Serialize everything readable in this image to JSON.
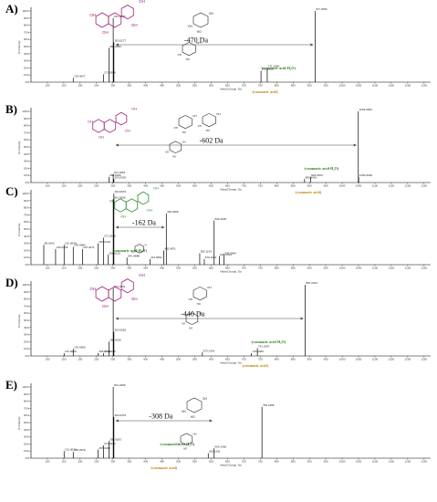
{
  "colors": {
    "peak": "#000000",
    "axis": "#000000",
    "arrow": "#444444",
    "coumaric": "#2e7d1f",
    "coumaric_acid": "#b8860b",
    "aglycone_purple": "#a0207a",
    "aglycone_green": "#2e8b2e",
    "sugar": "#222222"
  },
  "x_axis_title": "Mass/Charge, Da",
  "y_axis_title": "% Intensity",
  "x_ticks": [
    "100",
    "150",
    "200",
    "250",
    "300",
    "350",
    "400",
    "450",
    "500",
    "550",
    "600",
    "650",
    "700",
    "750",
    "800",
    "850",
    "900",
    "950",
    "1000",
    "1050",
    "1100",
    "1150",
    "1200",
    "1250"
  ],
  "y_ticks": [
    "0%",
    "10%",
    "20%",
    "30%",
    "40%",
    "50%",
    "60%",
    "70%",
    "80%",
    "90%",
    "100%"
  ],
  "chart_data": [
    {
      "type": "bar",
      "panel_label": "A)",
      "xlim": [
        50,
        1270
      ],
      "ylim": [
        0,
        100
      ],
      "peaks": [
        {
          "mz": 178.9,
          "intensity": 6,
          "label": "178.9977"
        },
        {
          "mz": 271.0,
          "intensity": 11,
          "label": "271.0588"
        },
        {
          "mz": 288.0,
          "intensity": 48,
          "label": "288.0185"
        },
        {
          "mz": 301.0,
          "intensity": 90,
          "label": "301.0350"
        },
        {
          "mz": 303.0,
          "intensity": 56,
          "label": "303.0277"
        },
        {
          "mz": 752.2,
          "intensity": 16,
          "label": "752.1910"
        },
        {
          "mz": 771.2,
          "intensity": 20,
          "label": "771.2080"
        },
        {
          "mz": 917.3,
          "intensity": 100,
          "label": "917.3052"
        }
      ],
      "annotations": {
        "delta": "-470 Da",
        "losses": [
          "-(coumaric acid-H₂O)",
          "-(coumaric acid)"
        ]
      }
    },
    {
      "type": "bar",
      "panel_label": "B)",
      "xlim": [
        50,
        1270
      ],
      "ylim": [
        0,
        100
      ],
      "peaks": [
        {
          "mz": 288.0,
          "intensity": 8,
          "label": "288.0236"
        },
        {
          "mz": 301.0,
          "intensity": 12,
          "label": "301.0351"
        },
        {
          "mz": 303.0,
          "intensity": 5,
          "label": "303.0330"
        },
        {
          "mz": 885.2,
          "intensity": 5,
          "label": "885.2401"
        },
        {
          "mz": 903.2,
          "intensity": 8,
          "label": "903.2450"
        },
        {
          "mz": 1049.3,
          "intensity": 100,
          "label": "1049.3060"
        },
        {
          "mz": 1050.3,
          "intensity": 8,
          "label": "1050.3094"
        }
      ],
      "annotations": {
        "delta": "-602 Da",
        "losses": [
          "-(coumaric acid-H₂O)",
          "-(coumaric acid)"
        ]
      }
    },
    {
      "type": "bar",
      "panel_label": "C)",
      "xlim": [
        50,
        1270
      ],
      "ylim": [
        0,
        100
      ],
      "peaks": [
        {
          "mz": 89.0,
          "intensity": 28,
          "label": "89.0242"
        },
        {
          "mz": 125.0,
          "intensity": 22,
          "label": "125.0238"
        },
        {
          "mz": 151.0,
          "intensity": 28,
          "label": "151.0039"
        },
        {
          "mz": 178.9,
          "intensity": 25,
          "label": "178.9984"
        },
        {
          "mz": 207.0,
          "intensity": 22,
          "label": "207.0271"
        },
        {
          "mz": 255.0,
          "intensity": 30,
          "label": "255.0316"
        },
        {
          "mz": 271.0,
          "intensity": 38,
          "label": "271.0248"
        },
        {
          "mz": 286.0,
          "intensity": 14,
          "label": "286.0116"
        },
        {
          "mz": 301.0,
          "intensity": 92,
          "label": "301.0366"
        },
        {
          "mz": 303.0,
          "intensity": 100,
          "label": "303.0576"
        },
        {
          "mz": 343.0,
          "intensity": 10,
          "label": "343.0441"
        },
        {
          "mz": 413.0,
          "intensity": 8,
          "label": "413.0652"
        },
        {
          "mz": 455.0,
          "intensity": 20,
          "label": "455.0871"
        },
        {
          "mz": 463.0,
          "intensity": 72,
          "label": "463.0905"
        },
        {
          "mz": 565.1,
          "intensity": 16,
          "label": "565.1143"
        },
        {
          "mz": 579.1,
          "intensity": 8,
          "label": "579.1024"
        },
        {
          "mz": 609.1,
          "intensity": 62,
          "label": "609.1536"
        },
        {
          "mz": 625.1,
          "intensity": 12,
          "label": "625.1704"
        },
        {
          "mz": 639.0,
          "intensity": 14,
          "label": "639.0694"
        }
      ],
      "annotations": {
        "delta": "-162 Da",
        "losses": [
          "-(coumaric acid-H₂O)"
        ]
      }
    },
    {
      "type": "bar",
      "panel_label": "D)",
      "xlim": [
        50,
        1270
      ],
      "ylim": [
        0,
        100
      ],
      "peaks": [
        {
          "mz": 151.0,
          "intensity": 4,
          "label": "151.0029"
        },
        {
          "mz": 178.9,
          "intensity": 10,
          "label": "178.9990"
        },
        {
          "mz": 255.0,
          "intensity": 4,
          "label": "255.0328"
        },
        {
          "mz": 271.0,
          "intensity": 4,
          "label": "271.0256"
        },
        {
          "mz": 288.0,
          "intensity": 20,
          "label": "288.0196"
        },
        {
          "mz": 301.0,
          "intensity": 95,
          "label": "301.0361"
        },
        {
          "mz": 303.0,
          "intensity": 34,
          "label": "303.0282"
        },
        {
          "mz": 573.1,
          "intensity": 5,
          "label": "573.1334"
        },
        {
          "mz": 723.1,
          "intensity": 4,
          "label": "723.1945"
        },
        {
          "mz": 741.1,
          "intensity": 11,
          "label": "741.1967"
        },
        {
          "mz": 887.2,
          "intensity": 100,
          "label": "887.2234"
        }
      ],
      "annotations": {
        "delta": "-440 Da",
        "losses": [
          "-(coumaric acid-H₂O)",
          "-(coumaric acid)"
        ]
      }
    },
    {
      "type": "bar",
      "panel_label": "E)",
      "xlim": [
        50,
        1270
      ],
      "ylim": [
        0,
        100
      ],
      "peaks": [
        {
          "mz": 151.0,
          "intensity": 10,
          "label": "151.0020"
        },
        {
          "mz": 178.9,
          "intensity": 9,
          "label": "178.9979"
        },
        {
          "mz": 255.0,
          "intensity": 12,
          "label": "255.0292"
        },
        {
          "mz": 271.0,
          "intensity": 18,
          "label": "271.0242"
        },
        {
          "mz": 288.0,
          "intensity": 24,
          "label": "288.0183"
        },
        {
          "mz": 301.0,
          "intensity": 100,
          "label": "301.0359"
        },
        {
          "mz": 303.0,
          "intensity": 58,
          "label": "303.0376"
        },
        {
          "mz": 591.1,
          "intensity": 7,
          "label": "591.1291"
        },
        {
          "mz": 609.1,
          "intensity": 14,
          "label": "609.1466"
        },
        {
          "mz": 755.1,
          "intensity": 72,
          "label": "755.1955"
        }
      ],
      "annotations": {
        "delta": "-308 Da",
        "losses": [
          "-(coumaric acid-H₂O)",
          "-(coumaric acid)"
        ]
      }
    }
  ]
}
